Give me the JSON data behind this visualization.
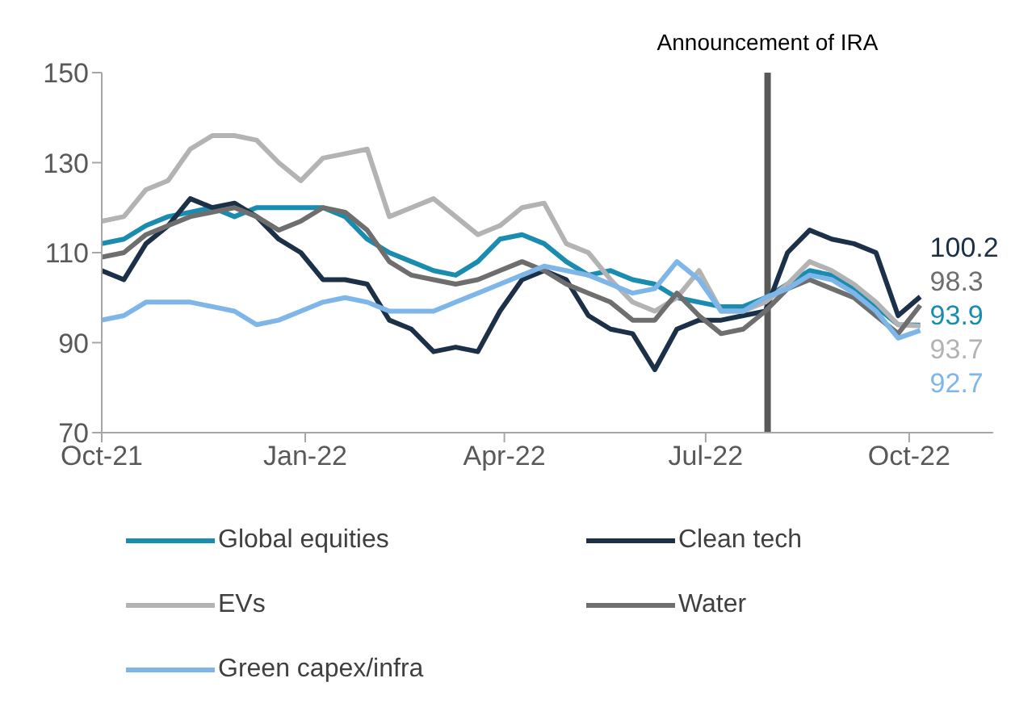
{
  "chart_data": {
    "type": "line",
    "x": [
      "2021-10-01",
      "2021-10-11",
      "2021-10-21",
      "2021-10-31",
      "2021-11-10",
      "2021-11-20",
      "2021-11-30",
      "2021-12-10",
      "2021-12-20",
      "2021-12-30",
      "2022-01-09",
      "2022-01-19",
      "2022-01-29",
      "2022-02-08",
      "2022-02-18",
      "2022-02-28",
      "2022-03-10",
      "2022-03-20",
      "2022-03-30",
      "2022-04-09",
      "2022-04-19",
      "2022-04-29",
      "2022-05-09",
      "2022-05-19",
      "2022-05-29",
      "2022-06-08",
      "2022-06-18",
      "2022-06-28",
      "2022-07-08",
      "2022-07-18",
      "2022-07-28",
      "2022-08-07",
      "2022-08-17",
      "2022-08-27",
      "2022-09-06",
      "2022-09-16",
      "2022-09-26",
      "2022-10-06"
    ],
    "series": [
      {
        "name": "Global equities",
        "color": "#1a8cb0",
        "values": [
          112,
          113,
          116,
          118,
          119,
          120,
          118,
          120,
          120,
          120,
          120,
          118,
          113,
          110,
          108,
          106,
          105,
          108,
          113,
          114,
          112,
          108,
          105,
          106,
          104,
          103,
          100,
          99,
          98,
          98,
          100,
          103,
          106,
          105,
          102,
          98,
          94,
          93.9
        ],
        "value_labels": [
          null,
          null,
          null,
          null,
          null,
          null,
          null,
          null,
          null,
          null,
          null,
          null,
          null,
          null,
          null,
          null,
          null,
          null,
          null,
          null,
          null,
          null,
          null,
          null,
          null,
          null,
          null,
          null,
          null,
          null,
          null,
          null,
          null,
          null,
          null,
          null,
          null,
          "93.9"
        ]
      },
      {
        "name": "Clean tech",
        "color": "#1c3048",
        "values": [
          106,
          104,
          112,
          116,
          122,
          120,
          121,
          118,
          113,
          110,
          104,
          104,
          103,
          95,
          93,
          88,
          89,
          88,
          97,
          104,
          106,
          104,
          96,
          93,
          92,
          84,
          93,
          95,
          95,
          96,
          97,
          110,
          115,
          113,
          112,
          110,
          96,
          100.2
        ],
        "value_labels": [
          null,
          null,
          null,
          null,
          null,
          null,
          null,
          null,
          null,
          null,
          null,
          null,
          null,
          null,
          null,
          null,
          null,
          null,
          null,
          null,
          null,
          null,
          null,
          null,
          null,
          null,
          null,
          null,
          null,
          null,
          null,
          null,
          null,
          null,
          null,
          null,
          null,
          "100.2"
        ]
      },
      {
        "name": "EVs",
        "color": "#b3b3b3",
        "values": [
          117,
          118,
          124,
          126,
          133,
          136,
          136,
          135,
          130,
          126,
          131,
          132,
          133,
          118,
          120,
          122,
          118,
          114,
          116,
          120,
          121,
          112,
          110,
          104,
          99,
          97,
          100,
          106,
          97,
          97,
          99,
          103,
          108,
          106,
          103,
          99,
          94,
          93.7
        ],
        "value_labels": [
          null,
          null,
          null,
          null,
          null,
          null,
          null,
          null,
          null,
          null,
          null,
          null,
          null,
          null,
          null,
          null,
          null,
          null,
          null,
          null,
          null,
          null,
          null,
          null,
          null,
          null,
          null,
          null,
          null,
          null,
          null,
          null,
          null,
          null,
          null,
          null,
          null,
          "93.7"
        ]
      },
      {
        "name": "Water",
        "color": "#6e6e6e",
        "values": [
          109,
          110,
          114,
          116,
          118,
          119,
          120,
          118,
          115,
          117,
          120,
          119,
          115,
          108,
          105,
          104,
          103,
          104,
          106,
          108,
          106,
          103,
          101,
          99,
          95,
          95,
          101,
          96,
          92,
          93,
          97,
          102,
          104,
          102,
          100,
          96,
          92,
          98.3
        ],
        "value_labels": [
          null,
          null,
          null,
          null,
          null,
          null,
          null,
          null,
          null,
          null,
          null,
          null,
          null,
          null,
          null,
          null,
          null,
          null,
          null,
          null,
          null,
          null,
          null,
          null,
          null,
          null,
          null,
          null,
          null,
          null,
          null,
          null,
          null,
          null,
          null,
          null,
          null,
          "98.3"
        ]
      },
      {
        "name": "Green capex/infra",
        "color": "#7fb6ea",
        "values": [
          95,
          96,
          99,
          99,
          99,
          98,
          97,
          94,
          95,
          97,
          99,
          100,
          99,
          97,
          97,
          97,
          99,
          101,
          103,
          105,
          107,
          106,
          105,
          103,
          101,
          102,
          108,
          104,
          97,
          97,
          100,
          102,
          105,
          104,
          101,
          97,
          91,
          92.7
        ],
        "value_labels": [
          null,
          null,
          null,
          null,
          null,
          null,
          null,
          null,
          null,
          null,
          null,
          null,
          null,
          null,
          null,
          null,
          null,
          null,
          null,
          null,
          null,
          null,
          null,
          null,
          null,
          null,
          null,
          null,
          null,
          null,
          null,
          null,
          null,
          null,
          null,
          null,
          null,
          "92.7"
        ]
      }
    ],
    "ref_lines": [
      {
        "axis": "x",
        "value": "2022-07-29",
        "label": "Announcement of IRA",
        "color": "#595959"
      }
    ],
    "xlim": [
      "2021-10-01",
      "2022-11-08"
    ],
    "xticks": [
      {
        "value": "2021-10-01",
        "label": "Oct-21"
      },
      {
        "value": "2022-01-01",
        "label": "Jan-22"
      },
      {
        "value": "2022-04-01",
        "label": "Apr-22"
      },
      {
        "value": "2022-07-01",
        "label": "Jul-22"
      },
      {
        "value": "2022-10-01",
        "label": "Oct-22"
      }
    ],
    "ylim": [
      70,
      150
    ],
    "yticks": [
      70,
      90,
      110,
      130,
      150
    ],
    "grid": false,
    "legend": "bottom",
    "line_style": "solid",
    "marker": "none"
  }
}
